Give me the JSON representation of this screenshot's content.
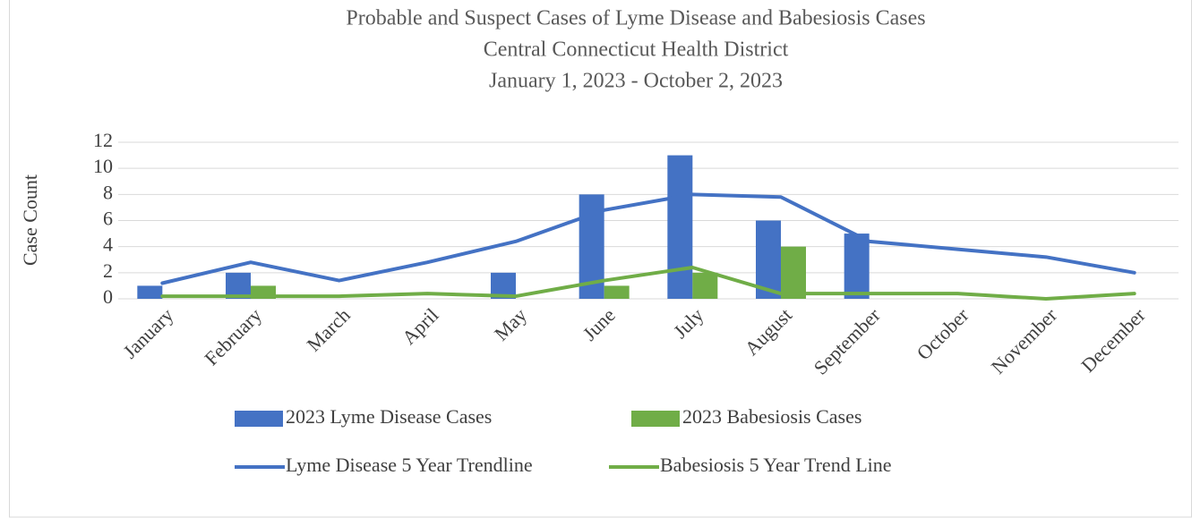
{
  "chart_data": {
    "type": "bar-line",
    "title": [
      "Probable and Suspect Cases of Lyme Disease and Babesiosis Cases",
      "Central Connecticut Health District",
      "January 1, 2023 - October 2, 2023"
    ],
    "y_label": "Case Count",
    "categories": [
      "January",
      "February",
      "March",
      "April",
      "May",
      "June",
      "July",
      "August",
      "September",
      "October",
      "November",
      "December"
    ],
    "series": [
      {
        "name": "2023 Lyme Disease Cases",
        "type": "bar",
        "color": "#4472c4",
        "values": [
          1,
          2,
          0,
          0,
          2,
          8,
          11,
          6,
          5,
          0,
          0,
          0
        ]
      },
      {
        "name": "2023 Babesiosis Cases",
        "type": "bar",
        "color": "#70ad47",
        "values": [
          0,
          1,
          0,
          0,
          0,
          1,
          2,
          4,
          0,
          0,
          0,
          0
        ]
      },
      {
        "name": "Lyme Disease 5 Year Trendline",
        "type": "line",
        "color": "#4472c4",
        "values": [
          1.2,
          2.8,
          1.4,
          2.8,
          4.4,
          6.8,
          8,
          7.8,
          4.4,
          3.8,
          3.2,
          2
        ]
      },
      {
        "name": "Babesiosis 5 Year Trend Line",
        "type": "line",
        "color": "#70ad47",
        "values": [
          0.2,
          0.2,
          0.2,
          0.4,
          0.2,
          1.4,
          2.4,
          0.4,
          0.4,
          0.4,
          0,
          0.4
        ]
      }
    ],
    "ylim": [
      0,
      12
    ],
    "yticks": [
      0,
      2,
      4,
      6,
      8,
      10,
      12
    ],
    "grid": true,
    "legend": "bottom"
  }
}
